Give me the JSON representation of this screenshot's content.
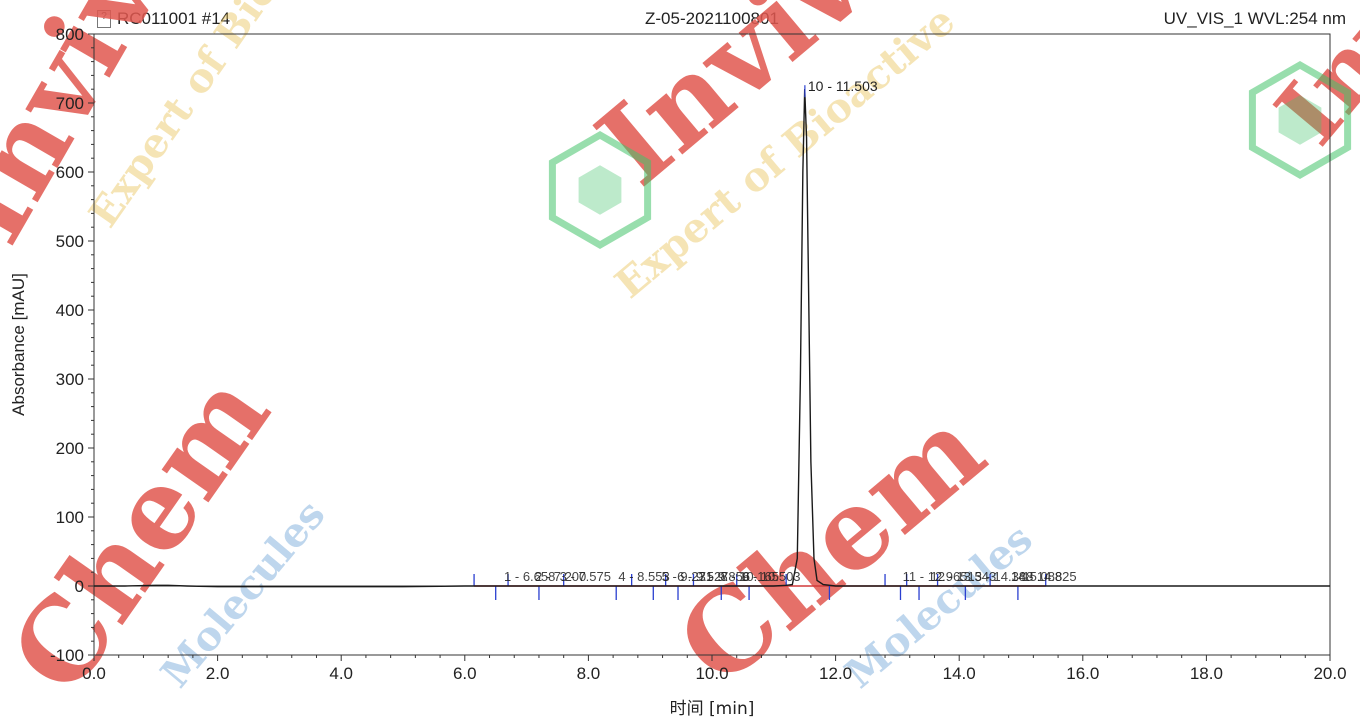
{
  "header": {
    "left": "RC011001 #14",
    "center": "Z-05-2021100801",
    "right": "UV_VIS_1 WVL:254 nm"
  },
  "watermark": {
    "brand": "InvivoChem",
    "brand_part_a": "Invivo",
    "brand_part_b": "Chem",
    "tagline": "Expert of Bioactive Molecules",
    "tagline_part_a": "Expert of Bioactive",
    "tagline_part_b": "Molecules",
    "color_brand": "#e1574f",
    "color_tag": "#e8c45a",
    "color_mol": "#6fa4d8",
    "color_logo": "#43c26a"
  },
  "chart_data": {
    "type": "line",
    "xlabel": "时间 [min]",
    "ylabel": "Absorbance [mAU]",
    "xlim": [
      0.0,
      20.0
    ],
    "ylim": [
      -100,
      800
    ],
    "xticks": [
      "0.0",
      "2.0",
      "4.0",
      "6.0",
      "8.0",
      "10.0",
      "12.0",
      "14.0",
      "16.0",
      "18.0",
      "20.0"
    ],
    "yticks": [
      "-100",
      "0",
      "100",
      "200",
      "300",
      "400",
      "500",
      "600",
      "700",
      "800"
    ],
    "series": [
      {
        "color": "#1a1a1a",
        "x": [
          0.0,
          0.5,
          1.0,
          1.2,
          1.5,
          2.0,
          3.0,
          4.0,
          5.0,
          6.0,
          7.0,
          8.0,
          9.0,
          10.0,
          10.8,
          11.0,
          11.2,
          11.3,
          11.38,
          11.43,
          11.47,
          11.5,
          11.53,
          11.56,
          11.6,
          11.65,
          11.7,
          11.8,
          12.0,
          13.0,
          14.0,
          15.0,
          16.0,
          18.0,
          20.0
        ],
        "y": [
          0,
          0,
          1,
          1,
          0,
          -1,
          -1,
          -1,
          -1,
          0,
          0,
          0,
          0,
          0,
          0,
          0,
          1,
          2,
          40,
          300,
          600,
          720,
          650,
          450,
          180,
          40,
          8,
          2,
          0,
          0,
          0,
          0,
          0,
          0,
          0
        ]
      }
    ],
    "peak_labels": [
      {
        "x": 11.503,
        "y": 720,
        "text": "10 - 11.503"
      },
      {
        "x": 6.7,
        "y": 0,
        "text": "1 - 6.658"
      },
      {
        "x": 7.2,
        "y": 0,
        "text": "2 - 7.200"
      },
      {
        "x": 7.6,
        "y": 0,
        "text": "3 - 7.575"
      },
      {
        "x": 8.55,
        "y": 0,
        "text": "4 - 8.553"
      },
      {
        "x": 9.25,
        "y": 0,
        "text": "5 - 9.231"
      },
      {
        "x": 9.5,
        "y": 0,
        "text": "6 - 9.527"
      },
      {
        "x": 9.85,
        "y": 0,
        "text": "7 - 9.856"
      },
      {
        "x": 10.2,
        "y": 0,
        "text": "8 - 10.165"
      },
      {
        "x": 10.55,
        "y": 0,
        "text": "9 - 10.503"
      },
      {
        "x": 13.15,
        "y": 0,
        "text": "11 - 12.965"
      },
      {
        "x": 13.6,
        "y": 0,
        "text": "12 - 13.543"
      },
      {
        "x": 14.2,
        "y": 0,
        "text": "13 - 14.388"
      },
      {
        "x": 14.9,
        "y": 0,
        "text": "14 - 14.825"
      },
      {
        "x": 15.088,
        "y": 0,
        "text": "15.088"
      }
    ],
    "integration_marks_x": [
      6.15,
      6.5,
      6.7,
      7.2,
      7.6,
      8.45,
      8.7,
      9.05,
      9.25,
      9.45,
      9.7,
      10.15,
      10.4,
      10.6,
      11.2,
      11.9,
      12.8,
      13.05,
      13.15,
      13.35,
      13.65,
      14.1,
      14.5,
      14.95,
      15.4
    ]
  }
}
